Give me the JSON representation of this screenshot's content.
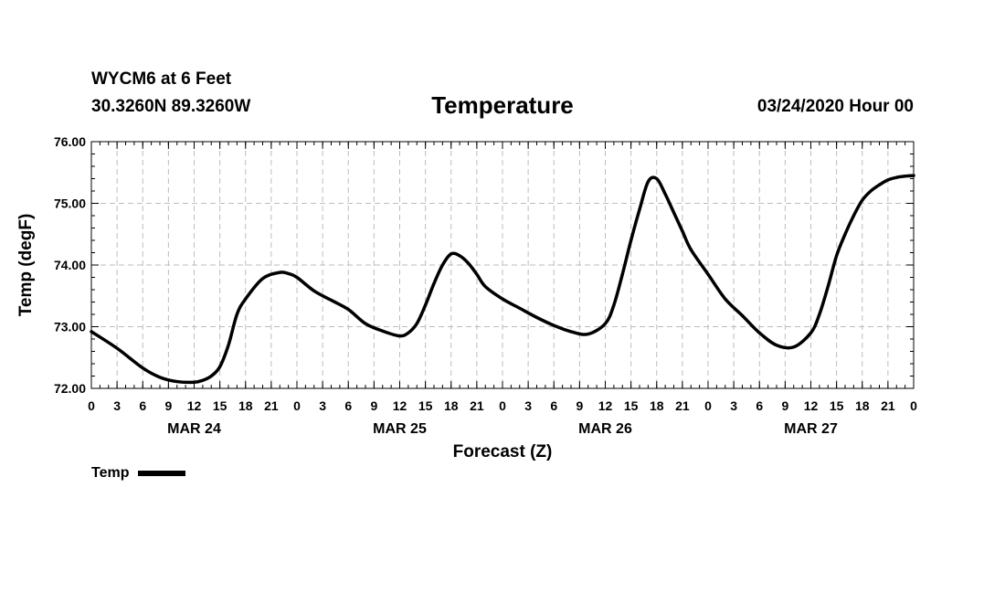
{
  "header": {
    "station": "WYCM6 at 6 Feet",
    "coords": "30.3260N 89.3260W",
    "title": "Temperature",
    "date": "03/24/2020 Hour 00"
  },
  "chart_data": {
    "type": "line",
    "title": "Temperature",
    "xlabel": "Forecast (Z)",
    "ylabel": "Temp (degF)",
    "ylim": [
      72.0,
      76.0
    ],
    "yticks": [
      "72.00",
      "73.00",
      "74.00",
      "75.00",
      "76.00"
    ],
    "xlim": [
      0,
      96
    ],
    "xtick_hours": [
      0,
      3,
      6,
      9,
      12,
      15,
      18,
      21,
      24,
      27,
      30,
      33,
      36,
      39,
      42,
      45,
      48,
      51,
      54,
      57,
      60,
      63,
      66,
      69,
      72,
      75,
      78,
      81,
      84,
      87,
      90,
      93,
      96
    ],
    "xtick_labels": [
      "0",
      "3",
      "6",
      "9",
      "12",
      "15",
      "18",
      "21",
      "0",
      "3",
      "6",
      "9",
      "12",
      "15",
      "18",
      "21",
      "0",
      "3",
      "6",
      "9",
      "12",
      "15",
      "18",
      "21",
      "0",
      "3",
      "6",
      "9",
      "12",
      "15",
      "18",
      "21",
      "0"
    ],
    "day_labels": [
      {
        "hour": 12,
        "label": "MAR 24"
      },
      {
        "hour": 36,
        "label": "MAR 25"
      },
      {
        "hour": 60,
        "label": "MAR 26"
      },
      {
        "hour": 84,
        "label": "MAR 27"
      }
    ],
    "grid": true,
    "series": [
      {
        "name": "Temp",
        "color": "#000000",
        "x": [
          0,
          3,
          6,
          8,
          10,
          12,
          13,
          14,
          15,
          16,
          17,
          18,
          20,
          22,
          23,
          24,
          26,
          28,
          30,
          32,
          34,
          36,
          37,
          38,
          39,
          40,
          41,
          42,
          43,
          44,
          45,
          46,
          48,
          50,
          52,
          54,
          56,
          58,
          60,
          61,
          62,
          63,
          64,
          65,
          66,
          67,
          68,
          69,
          70,
          72,
          74,
          76,
          78,
          80,
          82,
          84,
          85,
          86,
          87,
          88,
          89,
          90,
          91,
          92,
          93,
          94,
          95,
          96
        ],
        "y": [
          72.92,
          72.65,
          72.33,
          72.18,
          72.11,
          72.1,
          72.13,
          72.2,
          72.35,
          72.7,
          73.2,
          73.45,
          73.78,
          73.88,
          73.86,
          73.8,
          73.58,
          73.43,
          73.28,
          73.05,
          72.93,
          72.85,
          72.9,
          73.05,
          73.35,
          73.7,
          74.0,
          74.18,
          74.15,
          74.03,
          73.85,
          73.65,
          73.45,
          73.3,
          73.15,
          73.02,
          72.92,
          72.88,
          73.05,
          73.35,
          73.85,
          74.4,
          74.9,
          75.35,
          75.4,
          75.15,
          74.85,
          74.55,
          74.25,
          73.85,
          73.45,
          73.18,
          72.9,
          72.7,
          72.67,
          72.9,
          73.2,
          73.65,
          74.15,
          74.5,
          74.8,
          75.05,
          75.2,
          75.3,
          75.38,
          75.42,
          75.44,
          75.45
        ]
      }
    ]
  },
  "legend": {
    "label": "Temp"
  }
}
